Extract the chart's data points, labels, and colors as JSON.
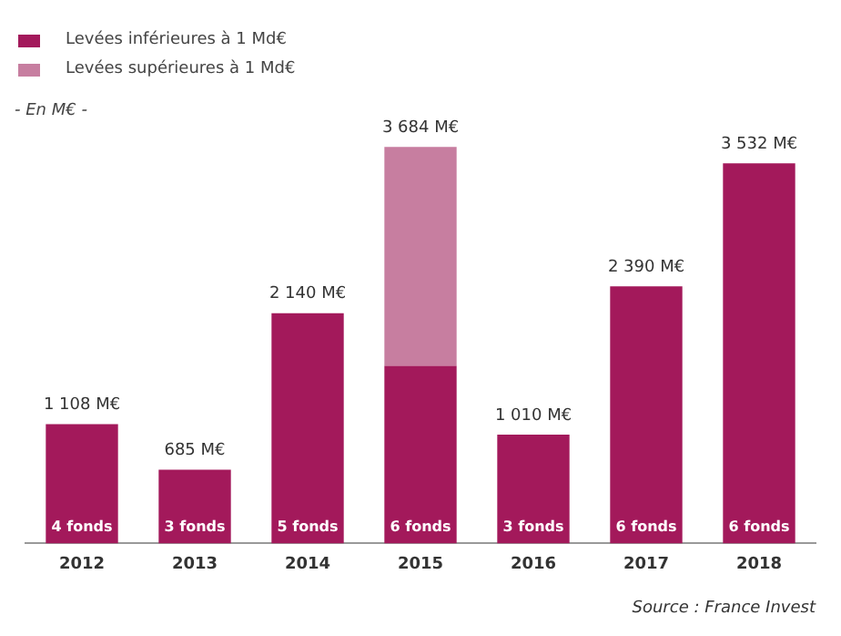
{
  "chart_data": {
    "type": "bar",
    "subtitle": "- En M€ -",
    "categories": [
      "2012",
      "2013",
      "2014",
      "2015",
      "2016",
      "2017",
      "2018"
    ],
    "series": [
      {
        "name": "Levées inférieures à 1 Md€",
        "color": "#a3195b",
        "values": [
          1108,
          685,
          2140,
          1650,
          1010,
          2390,
          3532
        ],
        "value_labels": [
          "1 108 M€",
          "685 M€",
          "2 140 M€",
          null,
          "1 010 M€",
          "2 390 M€",
          "3 532 M€"
        ]
      },
      {
        "name": "Levées supérieures à 1 Md€",
        "color": "#c77ea0",
        "values": [
          null,
          null,
          null,
          2034,
          null,
          null,
          null
        ]
      }
    ],
    "stacked": true,
    "tick_labels": "x",
    "grid": false,
    "legend": "top left",
    "totals": [
      null,
      null,
      null,
      "3 684 M€",
      null,
      null,
      null
    ],
    "annotations": [
      "4 fonds",
      "3 fonds",
      "5 fonds",
      "6 fonds",
      "3 fonds",
      "6 fonds",
      "6 fonds",
      "Source : France Invest"
    ]
  }
}
